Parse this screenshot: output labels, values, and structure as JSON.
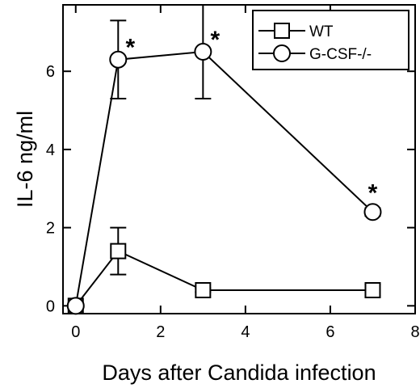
{
  "chart_data": {
    "type": "line",
    "xlabel": "Days after Candida infection",
    "ylabel": "IL-6 ng/ml",
    "xlim": [
      -0.3,
      8
    ],
    "ylim": [
      -0.2,
      7.7
    ],
    "xticks": [
      0,
      2,
      4,
      6,
      8
    ],
    "yticks": [
      0,
      2,
      4,
      6
    ],
    "grid": false,
    "legend_position": "top-right",
    "series": [
      {
        "name": "WT",
        "marker": "square",
        "x": [
          0,
          1,
          3,
          7
        ],
        "y": [
          0,
          1.4,
          0.4,
          0.4
        ],
        "error": [
          0,
          0.6,
          0.05,
          0.15
        ]
      },
      {
        "name": "G-CSF-/-",
        "marker": "circle",
        "x": [
          0,
          1,
          3,
          7
        ],
        "y": [
          0,
          6.3,
          6.5,
          2.4
        ],
        "error": [
          0,
          1.0,
          1.2,
          0.1
        ]
      }
    ],
    "annotations": [
      {
        "text": "*",
        "x": 1,
        "y": 6.3
      },
      {
        "text": "*",
        "x": 3,
        "y": 6.5
      },
      {
        "text": "*",
        "x": 7,
        "y": 2.4
      }
    ]
  }
}
